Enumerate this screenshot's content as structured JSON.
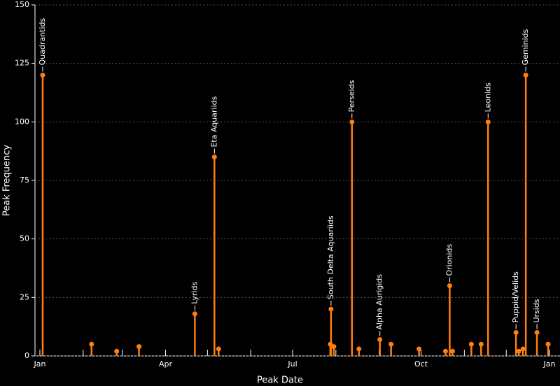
{
  "chart_data": {
    "type": "lollipop",
    "x_label": "Peak Date",
    "y_label": "Peak Frequency",
    "color": "#ff7f0e",
    "x": [
      2,
      37,
      55,
      71,
      111,
      125,
      128,
      208,
      208.5,
      210.5,
      223.5,
      228.5,
      243.5,
      251.5,
      271.5,
      290.5,
      293.5,
      295.5,
      309,
      316,
      321,
      341,
      343,
      346,
      348,
      356,
      364
    ],
    "values": [
      120,
      5,
      2,
      4,
      18,
      85,
      3,
      5,
      20,
      4,
      100,
      3,
      7,
      5,
      3,
      2,
      30,
      2,
      5,
      5,
      100,
      10,
      2,
      3,
      120,
      10,
      5
    ],
    "labels": [
      "Quadrantids",
      null,
      null,
      null,
      "Lyrids",
      "Eta Aquariids",
      null,
      null,
      "South Delta Aquariids",
      null,
      "Perseids",
      null,
      "Alpha Aurigids",
      null,
      null,
      null,
      "Orionids",
      null,
      null,
      null,
      "Leonids",
      "Puppid/Velids",
      null,
      null,
      "Geminids",
      "Ursids",
      null
    ],
    "xlim": [
      -3.5,
      372.5
    ],
    "xticks": [
      {
        "value": 0,
        "label": "Jan"
      },
      {
        "value": 90,
        "label": "Apr"
      },
      {
        "value": 181,
        "label": "Jul"
      },
      {
        "value": 273,
        "label": "Oct"
      },
      {
        "value": 365,
        "label": "Jan"
      }
    ],
    "xminor_ticks": [
      31,
      59,
      120,
      151,
      212,
      243,
      304,
      334
    ],
    "ylim": [
      0,
      150
    ],
    "yticks": [
      0,
      25,
      50,
      75,
      100,
      125,
      150
    ],
    "grid": true
  }
}
